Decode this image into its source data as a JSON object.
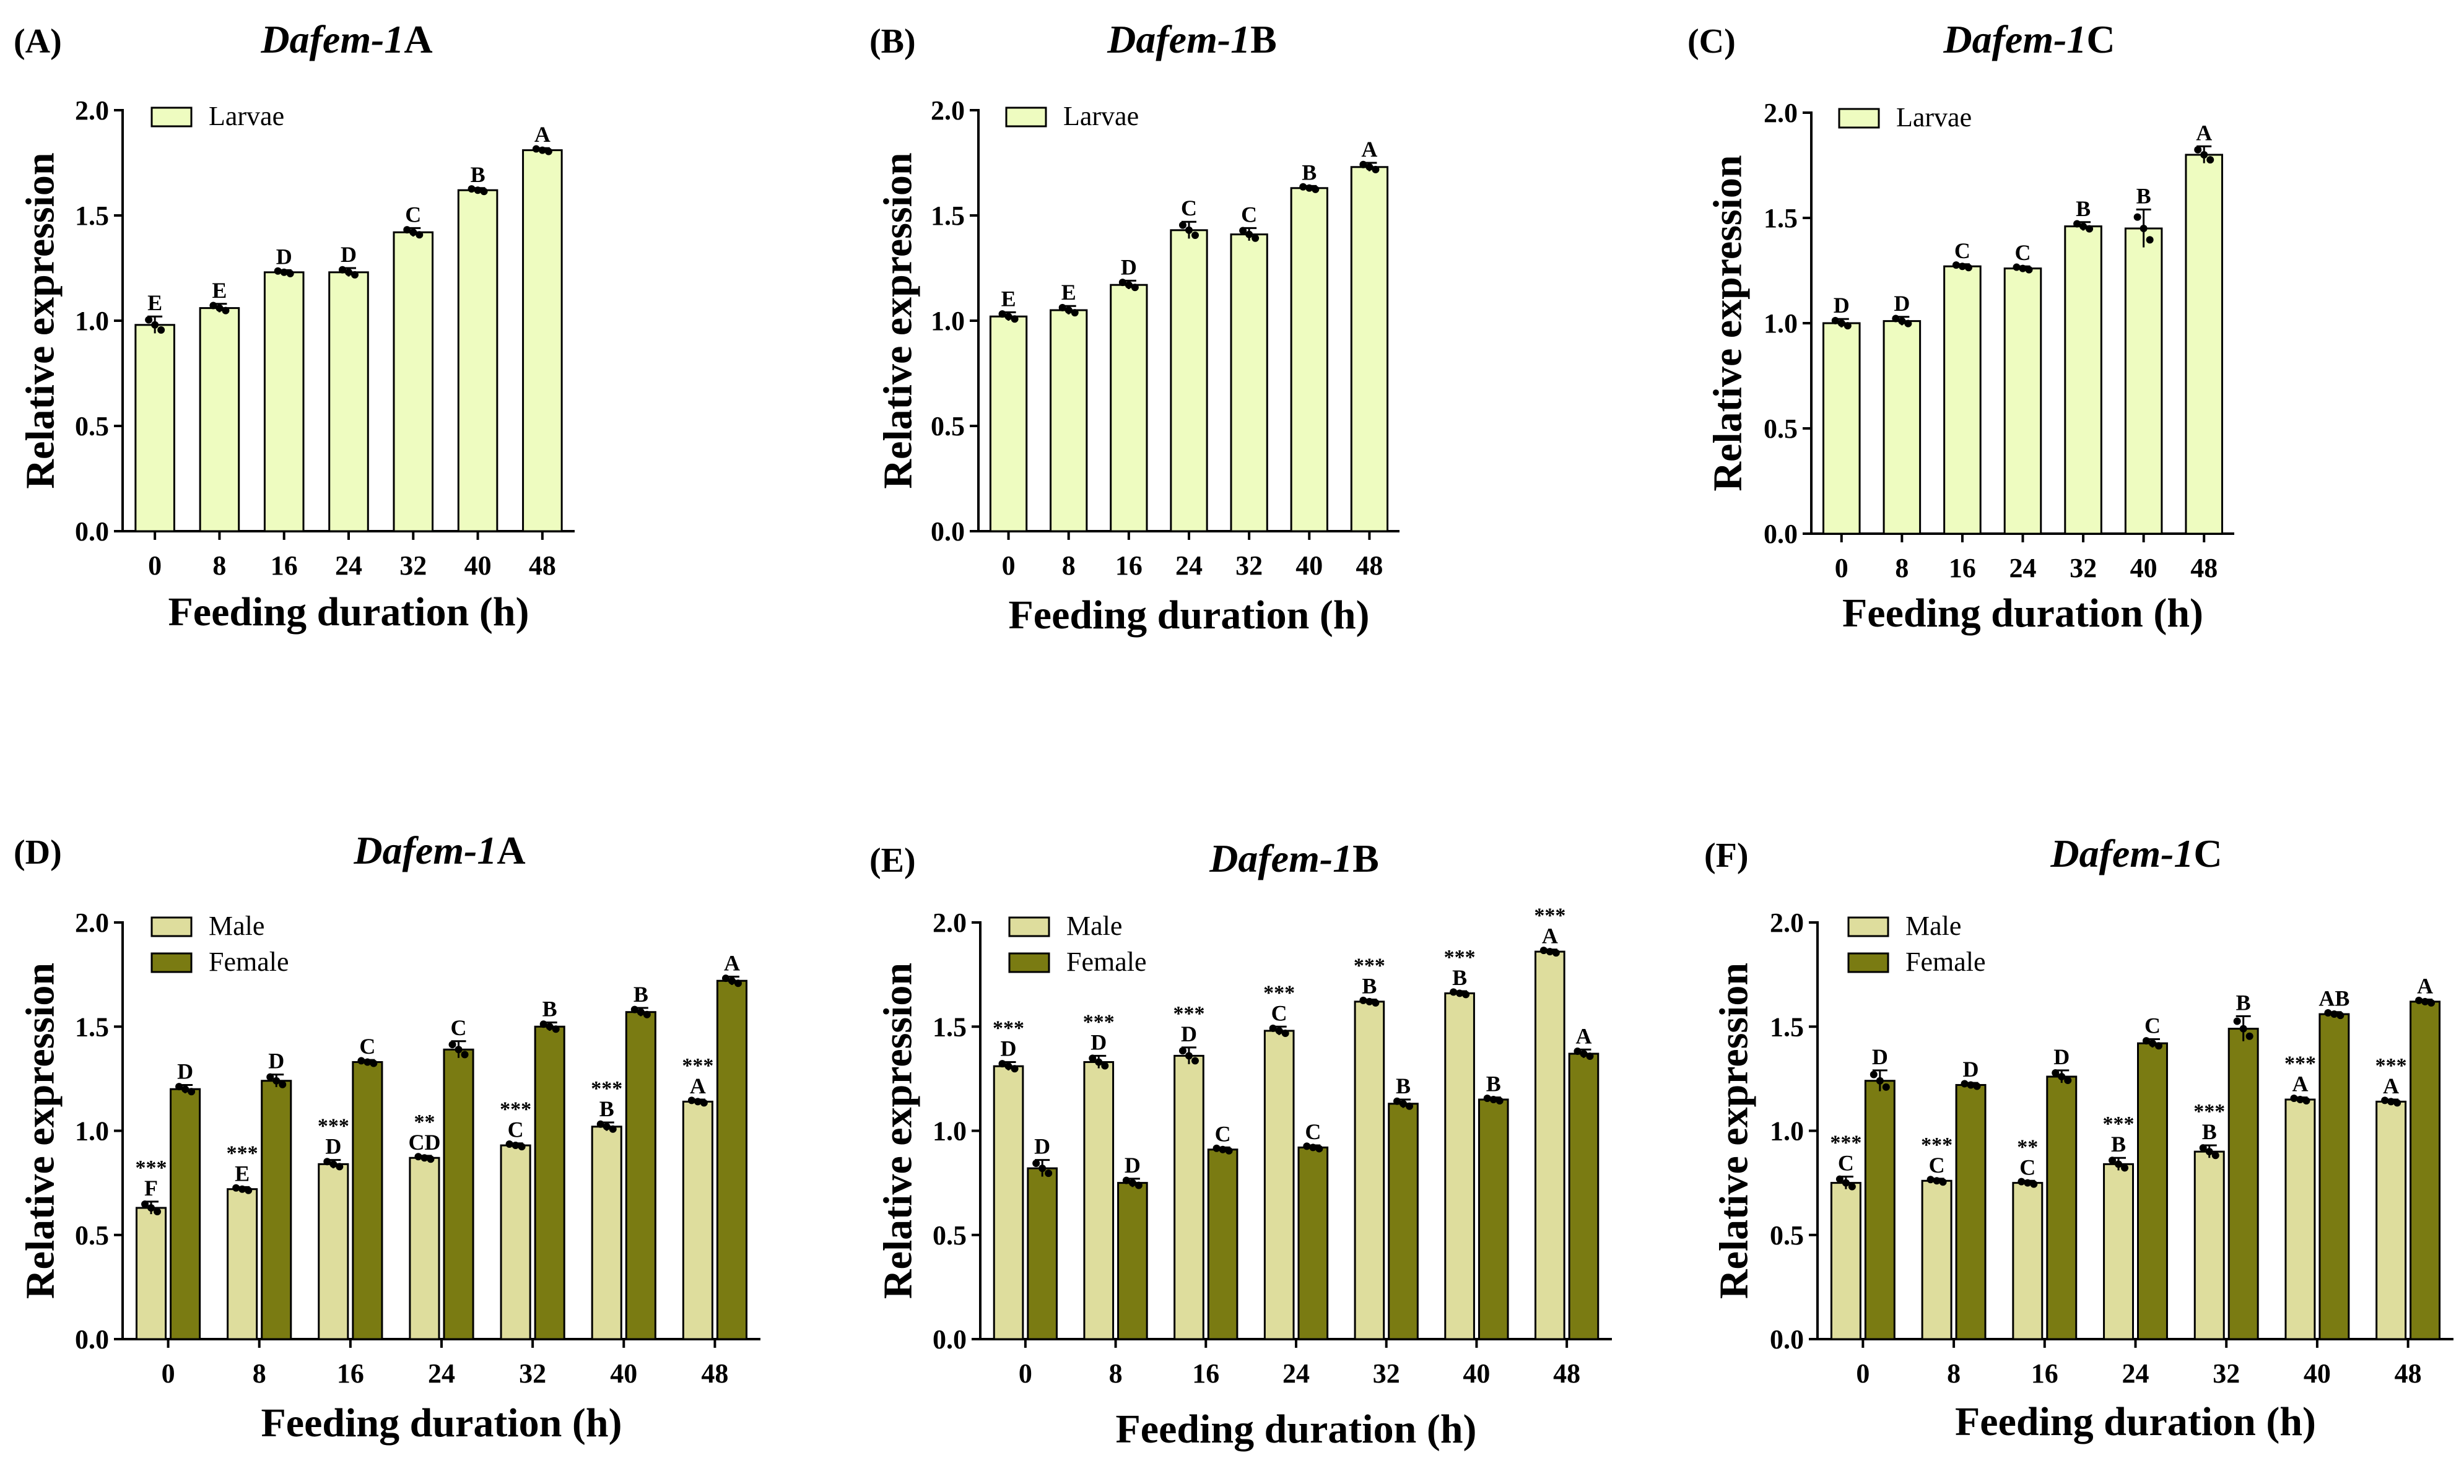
{
  "chart_data": [
    {
      "id": "A",
      "panel_label": "(A)",
      "title_gene": "Dafem-1",
      "title_suffix": "A",
      "type": "bar",
      "xlabel": "Feeding duration (h)",
      "ylabel": "Relative expression",
      "ylim": [
        0,
        2.0
      ],
      "yticks": [
        "0.0",
        "0.5",
        "1.0",
        "1.5",
        "2.0"
      ],
      "categories": [
        "0",
        "8",
        "16",
        "24",
        "32",
        "40",
        "48"
      ],
      "series": [
        {
          "name": "Larvae",
          "color": "#eefcc0",
          "values": [
            0.98,
            1.06,
            1.23,
            1.23,
            1.42,
            1.62,
            1.81
          ],
          "errors": [
            0.04,
            0.02,
            0.01,
            0.02,
            0.02,
            0.01,
            0.01
          ],
          "letters": [
            "E",
            "E",
            "D",
            "D",
            "C",
            "B",
            "A"
          ],
          "stars": [
            "",
            "",
            "",
            "",
            "",
            "",
            ""
          ]
        }
      ]
    },
    {
      "id": "B",
      "panel_label": "(B)",
      "title_gene": "Dafem-1",
      "title_suffix": "B",
      "type": "bar",
      "xlabel": "Feeding duration (h)",
      "ylabel": "Relative expression",
      "ylim": [
        0,
        2.0
      ],
      "yticks": [
        "0.0",
        "0.5",
        "1.0",
        "1.5",
        "2.0"
      ],
      "categories": [
        "0",
        "8",
        "16",
        "24",
        "32",
        "40",
        "48"
      ],
      "series": [
        {
          "name": "Larvae",
          "color": "#eefcc0",
          "values": [
            1.02,
            1.05,
            1.17,
            1.43,
            1.41,
            1.63,
            1.73
          ],
          "errors": [
            0.02,
            0.02,
            0.02,
            0.04,
            0.03,
            0.01,
            0.02
          ],
          "letters": [
            "E",
            "E",
            "D",
            "C",
            "C",
            "B",
            "A"
          ],
          "stars": [
            "",
            "",
            "",
            "",
            "",
            "",
            ""
          ]
        }
      ]
    },
    {
      "id": "C",
      "panel_label": "(C)",
      "title_gene": "Dafem-1",
      "title_suffix": "C",
      "type": "bar",
      "xlabel": "Feeding duration (h)",
      "ylabel": "Relative expression",
      "ylim": [
        0,
        2.0
      ],
      "yticks": [
        "0.0",
        "0.5",
        "1.0",
        "1.5",
        "2.0"
      ],
      "categories": [
        "0",
        "8",
        "16",
        "24",
        "32",
        "40",
        "48"
      ],
      "series": [
        {
          "name": "Larvae",
          "color": "#eefcc0",
          "values": [
            1.0,
            1.01,
            1.27,
            1.26,
            1.46,
            1.45,
            1.8
          ],
          "errors": [
            0.02,
            0.02,
            0.01,
            0.01,
            0.02,
            0.09,
            0.04
          ],
          "letters": [
            "D",
            "D",
            "C",
            "C",
            "B",
            "B",
            "A"
          ],
          "stars": [
            "",
            "",
            "",
            "",
            "",
            "",
            ""
          ]
        }
      ]
    },
    {
      "id": "D",
      "panel_label": "(D)",
      "title_gene": "Dafem-1",
      "title_suffix": "A",
      "type": "bar",
      "xlabel": "Feeding duration (h)",
      "ylabel": "Relative expression",
      "ylim": [
        0,
        2.0
      ],
      "yticks": [
        "0.0",
        "0.5",
        "1.0",
        "1.5",
        "2.0"
      ],
      "categories": [
        "0",
        "8",
        "16",
        "24",
        "32",
        "40",
        "48"
      ],
      "series": [
        {
          "name": "Male",
          "color": "#dedd9d",
          "values": [
            0.63,
            0.72,
            0.84,
            0.87,
            0.93,
            1.02,
            1.14
          ],
          "errors": [
            0.03,
            0.01,
            0.02,
            0.01,
            0.01,
            0.02,
            0.01
          ],
          "letters": [
            "F",
            "E",
            "D",
            "CD",
            "C",
            "B",
            "A"
          ],
          "stars": [
            "***",
            "***",
            "***",
            "**",
            "***",
            "***",
            "***"
          ]
        },
        {
          "name": "Female",
          "color": "#7a7b12",
          "values": [
            1.2,
            1.24,
            1.33,
            1.39,
            1.5,
            1.57,
            1.72
          ],
          "errors": [
            0.02,
            0.03,
            0.01,
            0.04,
            0.02,
            0.02,
            0.02
          ],
          "letters": [
            "D",
            "D",
            "C",
            "C",
            "B",
            "B",
            "A"
          ],
          "stars": [
            "",
            "",
            "",
            "",
            "",
            "",
            ""
          ]
        }
      ]
    },
    {
      "id": "E",
      "panel_label": "(E)",
      "title_gene": "Dafem-1",
      "title_suffix": "B",
      "type": "bar",
      "xlabel": "Feeding duration (h)",
      "ylabel": "Relative expression",
      "ylim": [
        0,
        2.0
      ],
      "yticks": [
        "0.0",
        "0.5",
        "1.0",
        "1.5",
        "2.0"
      ],
      "categories": [
        "0",
        "8",
        "16",
        "24",
        "32",
        "40",
        "48"
      ],
      "series": [
        {
          "name": "Male",
          "color": "#dedd9d",
          "values": [
            1.31,
            1.33,
            1.36,
            1.48,
            1.62,
            1.66,
            1.86
          ],
          "errors": [
            0.02,
            0.03,
            0.04,
            0.02,
            0.01,
            0.01,
            0.01
          ],
          "letters": [
            "D",
            "D",
            "D",
            "C",
            "B",
            "B",
            "A"
          ],
          "stars": [
            "***",
            "***",
            "***",
            "***",
            "***",
            "***",
            "***"
          ]
        },
        {
          "name": "Female",
          "color": "#7a7b12",
          "values": [
            0.82,
            0.75,
            0.91,
            0.92,
            1.13,
            1.15,
            1.37
          ],
          "errors": [
            0.04,
            0.02,
            0.01,
            0.01,
            0.02,
            0.01,
            0.02
          ],
          "letters": [
            "D",
            "D",
            "C",
            "C",
            "B",
            "B",
            "A"
          ],
          "stars": [
            "",
            "",
            "",
            "",
            "",
            "",
            ""
          ]
        }
      ]
    },
    {
      "id": "F",
      "panel_label": "(F)",
      "title_gene": "Dafem-1",
      "title_suffix": "C",
      "type": "bar",
      "xlabel": "Feeding duration (h)",
      "ylabel": "Relative expression",
      "ylim": [
        0,
        2.0
      ],
      "yticks": [
        "0.0",
        "0.5",
        "1.0",
        "1.5",
        "2.0"
      ],
      "categories": [
        "0",
        "8",
        "16",
        "24",
        "32",
        "40",
        "48"
      ],
      "series": [
        {
          "name": "Male",
          "color": "#dedd9d",
          "values": [
            0.75,
            0.76,
            0.75,
            0.84,
            0.9,
            1.15,
            1.14
          ],
          "errors": [
            0.03,
            0.01,
            0.01,
            0.03,
            0.03,
            0.01,
            0.01
          ],
          "letters": [
            "C",
            "C",
            "C",
            "B",
            "B",
            "A",
            "A"
          ],
          "stars": [
            "***",
            "***",
            "**",
            "***",
            "***",
            "***",
            "***"
          ]
        },
        {
          "name": "Female",
          "color": "#7a7b12",
          "values": [
            1.24,
            1.22,
            1.26,
            1.42,
            1.49,
            1.56,
            1.62
          ],
          "errors": [
            0.05,
            0.01,
            0.03,
            0.02,
            0.06,
            0.01,
            0.01
          ],
          "letters": [
            "D",
            "D",
            "D",
            "C",
            "B",
            "AB",
            "A"
          ],
          "stars": [
            "",
            "",
            "",
            "",
            "",
            "",
            ""
          ]
        }
      ]
    }
  ]
}
